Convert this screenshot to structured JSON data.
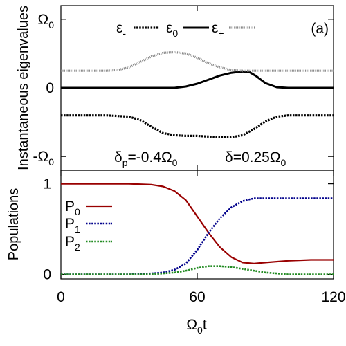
{
  "chart_data": [
    {
      "type": "line",
      "panel_label": "(a)",
      "ylabel": "Instantaneous eigenvalues",
      "xlim": [
        0,
        120
      ],
      "ylim": [
        -1.2,
        1.2
      ],
      "yticks": [
        {
          "value": 1,
          "label": "Ω",
          "sub": "0"
        },
        {
          "value": 0,
          "label": "0",
          "sub": ""
        },
        {
          "value": -1,
          "label": "-Ω",
          "sub": "0"
        }
      ],
      "legend_position": "top",
      "legend": [
        {
          "symbol": "ε",
          "sub": "-",
          "series": "eps_minus"
        },
        {
          "symbol": "ε",
          "sub": "0",
          "series": "eps_zero"
        },
        {
          "symbol": "ε",
          "sub": "+",
          "series": "eps_plus"
        }
      ],
      "annotations": [
        {
          "prefix": "δ",
          "sub": "p",
          "body": "=-0.4Ω",
          "tail_sub": "0"
        },
        {
          "prefix": "δ",
          "sub": "",
          "body": "=0.25Ω",
          "tail_sub": "0"
        }
      ],
      "series": [
        {
          "key": "eps_minus",
          "color": "#000000",
          "style": "dotted",
          "x": [
            0,
            10,
            20,
            30,
            35,
            40,
            45,
            50,
            55,
            60,
            65,
            70,
            75,
            80,
            85,
            90,
            95,
            100,
            110,
            120
          ],
          "y": [
            -0.4,
            -0.4,
            -0.4,
            -0.42,
            -0.47,
            -0.57,
            -0.66,
            -0.69,
            -0.7,
            -0.7,
            -0.71,
            -0.72,
            -0.72,
            -0.69,
            -0.6,
            -0.49,
            -0.42,
            -0.4,
            -0.4,
            -0.4
          ]
        },
        {
          "key": "eps_zero",
          "color": "#000000",
          "style": "solid",
          "x": [
            0,
            10,
            20,
            30,
            40,
            50,
            55,
            60,
            65,
            70,
            75,
            80,
            83,
            86,
            90,
            95,
            100,
            110,
            120
          ],
          "y": [
            0,
            0,
            0,
            0,
            0,
            0,
            0.02,
            0.06,
            0.12,
            0.18,
            0.22,
            0.24,
            0.23,
            0.17,
            0.07,
            0.01,
            0,
            0,
            0
          ]
        },
        {
          "key": "eps_plus",
          "color": "#8a8a8a",
          "style": "dashed",
          "x": [
            0,
            10,
            20,
            25,
            30,
            35,
            40,
            45,
            50,
            55,
            60,
            65,
            70,
            75,
            80,
            85,
            90,
            100,
            110,
            120
          ],
          "y": [
            0.25,
            0.25,
            0.25,
            0.26,
            0.3,
            0.38,
            0.46,
            0.51,
            0.52,
            0.5,
            0.44,
            0.36,
            0.3,
            0.26,
            0.25,
            0.25,
            0.25,
            0.25,
            0.25,
            0.25
          ]
        }
      ]
    },
    {
      "type": "line",
      "ylabel": "Populations",
      "xlabel": {
        "main": "Ω",
        "sub": "0",
        "tail": "t"
      },
      "xlim": [
        0,
        120
      ],
      "ylim": [
        -0.05,
        1.15
      ],
      "xticks": [
        0,
        60,
        120
      ],
      "yticks": [
        0,
        1
      ],
      "legend_position": "left",
      "legend": [
        {
          "symbol": "P",
          "sub": "0",
          "series": "P0"
        },
        {
          "symbol": "P",
          "sub": "1",
          "series": "P1"
        },
        {
          "symbol": "P",
          "sub": "2",
          "series": "P2"
        }
      ],
      "series": [
        {
          "key": "P0",
          "color": "#990000",
          "style": "solid",
          "x": [
            0,
            20,
            30,
            40,
            45,
            50,
            55,
            60,
            65,
            70,
            75,
            80,
            85,
            90,
            100,
            110,
            120
          ],
          "y": [
            1,
            1,
            1,
            0.99,
            0.97,
            0.92,
            0.82,
            0.64,
            0.46,
            0.3,
            0.19,
            0.13,
            0.12,
            0.13,
            0.15,
            0.16,
            0.16
          ]
        },
        {
          "key": "P1",
          "color": "#00008b",
          "style": "dotted",
          "x": [
            0,
            20,
            30,
            40,
            45,
            50,
            55,
            60,
            65,
            70,
            75,
            80,
            85,
            90,
            100,
            110,
            120
          ],
          "y": [
            0,
            0,
            0,
            0.01,
            0.02,
            0.05,
            0.12,
            0.27,
            0.46,
            0.62,
            0.74,
            0.81,
            0.84,
            0.84,
            0.84,
            0.84,
            0.84
          ]
        },
        {
          "key": "P2",
          "color": "#228b22",
          "style": "dotted",
          "x": [
            0,
            20,
            30,
            40,
            45,
            50,
            55,
            60,
            65,
            70,
            75,
            80,
            85,
            90,
            95,
            100,
            110,
            120
          ],
          "y": [
            0,
            0,
            0,
            0,
            0.01,
            0.02,
            0.04,
            0.07,
            0.09,
            0.09,
            0.08,
            0.06,
            0.04,
            0.02,
            0.01,
            0,
            0,
            0
          ]
        }
      ]
    }
  ]
}
